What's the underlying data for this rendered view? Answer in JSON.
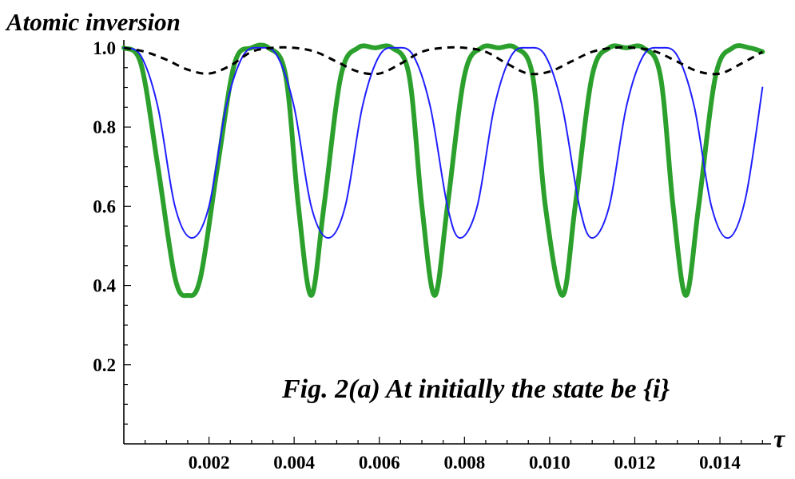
{
  "chart_data": {
    "type": "line",
    "title": "",
    "ylabel": "Atomic inversion",
    "xlabel": "τ",
    "annotation": "Fig. 2(a) At initially the state be {i}",
    "xlim": [
      0,
      0.0152
    ],
    "ylim": [
      0,
      1.02
    ],
    "x_ticks": [
      0.002,
      0.004,
      0.006,
      0.008,
      0.01,
      0.012,
      0.014
    ],
    "x_tick_labels": [
      "0.002",
      "0.004",
      "0.006",
      "0.008",
      "0.010",
      "0.012",
      "0.014"
    ],
    "y_ticks": [
      0.2,
      0.4,
      0.6,
      0.8,
      1.0
    ],
    "y_tick_labels": [
      "0.2",
      "0.4",
      "0.6",
      "0.8",
      "1.0"
    ],
    "grid": false,
    "series": [
      {
        "color": "#2ca02c",
        "style": "solid-thick",
        "x": [
          0,
          0.0004,
          0.0008,
          0.0012,
          0.0015,
          0.0018,
          0.0022,
          0.0026,
          0.003,
          0.0034,
          0.0038,
          0.0041,
          0.0044,
          0.0047,
          0.0051,
          0.0055,
          0.0059,
          0.0063,
          0.0067,
          0.007,
          0.0073,
          0.0076,
          0.008,
          0.0084,
          0.0088,
          0.0092,
          0.0096,
          0.0099,
          0.0103,
          0.0106,
          0.011,
          0.0114,
          0.0118,
          0.0122,
          0.0126,
          0.0129,
          0.0132,
          0.0135,
          0.0139,
          0.0143,
          0.0147,
          0.015
        ],
        "y": [
          1.0,
          0.96,
          0.7,
          0.42,
          0.375,
          0.42,
          0.7,
          0.96,
          1.0,
          1.0,
          0.93,
          0.6,
          0.375,
          0.6,
          0.93,
          1.0,
          1.0,
          1.0,
          0.93,
          0.6,
          0.375,
          0.6,
          0.93,
          1.0,
          1.0,
          1.0,
          0.93,
          0.6,
          0.375,
          0.6,
          0.93,
          1.0,
          1.0,
          1.0,
          0.93,
          0.6,
          0.375,
          0.6,
          0.93,
          1.0,
          1.0,
          0.99
        ]
      },
      {
        "color": "#1f1fff",
        "style": "solid-thin",
        "x": [
          0,
          0.0004,
          0.0008,
          0.0012,
          0.0016,
          0.002,
          0.0024,
          0.0028,
          0.0032,
          0.0036,
          0.004,
          0.0044,
          0.0048,
          0.0052,
          0.0056,
          0.006,
          0.0064,
          0.0068,
          0.0072,
          0.0076,
          0.0079,
          0.0083,
          0.0087,
          0.0091,
          0.0095,
          0.0099,
          0.0103,
          0.0107,
          0.011,
          0.0114,
          0.0118,
          0.0122,
          0.0126,
          0.013,
          0.0134,
          0.0138,
          0.0142,
          0.0146,
          0.015
        ],
        "y": [
          1.0,
          0.98,
          0.85,
          0.6,
          0.52,
          0.6,
          0.85,
          0.98,
          1.0,
          0.98,
          0.85,
          0.6,
          0.52,
          0.6,
          0.85,
          0.98,
          1.0,
          0.98,
          0.85,
          0.6,
          0.52,
          0.6,
          0.85,
          0.98,
          1.0,
          0.98,
          0.85,
          0.6,
          0.52,
          0.6,
          0.85,
          0.98,
          1.0,
          0.98,
          0.85,
          0.6,
          0.52,
          0.62,
          0.9
        ]
      },
      {
        "color": "#000000",
        "style": "dashed",
        "x": [
          0,
          0.0005,
          0.001,
          0.0015,
          0.002,
          0.0025,
          0.003,
          0.0035,
          0.004,
          0.0045,
          0.005,
          0.0055,
          0.006,
          0.0065,
          0.007,
          0.0075,
          0.008,
          0.0085,
          0.009,
          0.0095,
          0.01,
          0.0105,
          0.011,
          0.0115,
          0.012,
          0.0125,
          0.013,
          0.0135,
          0.014,
          0.0145,
          0.015
        ],
        "y": [
          1.0,
          0.99,
          0.97,
          0.945,
          0.935,
          0.955,
          0.99,
          1.0,
          1.0,
          0.99,
          0.965,
          0.94,
          0.935,
          0.96,
          0.99,
          1.0,
          1.0,
          0.99,
          0.96,
          0.935,
          0.94,
          0.965,
          0.99,
          1.0,
          1.0,
          0.99,
          0.965,
          0.94,
          0.935,
          0.96,
          0.99
        ]
      }
    ]
  }
}
